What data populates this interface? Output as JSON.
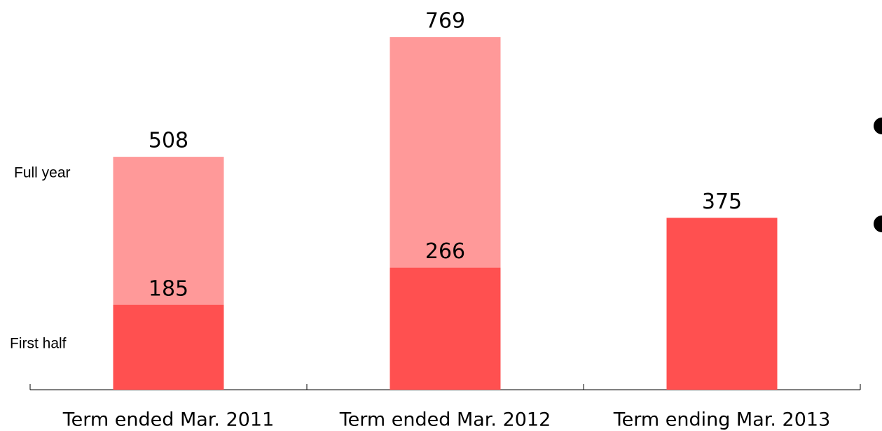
{
  "chart_data": {
    "type": "bar",
    "barmode": "overlay",
    "categories": [
      "Term ended Mar. 2011",
      "Term ended Mar. 2012",
      "Term ending Mar. 2013"
    ],
    "series": [
      {
        "name": "First half",
        "color": "#ff5050",
        "values": [
          185,
          266,
          375
        ]
      },
      {
        "name": "Full year",
        "color": "#ff9999",
        "values": [
          508,
          769,
          null
        ]
      }
    ],
    "ylim": [
      0,
      850
    ]
  }
}
